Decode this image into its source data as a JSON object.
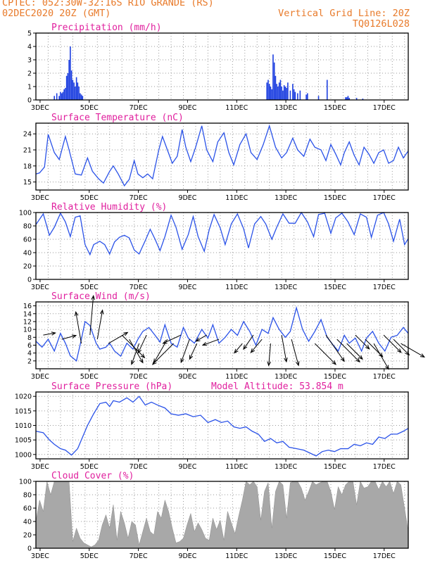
{
  "header": {
    "line1": "CPTEC:  052:30W-32:16S  RIO GRANDE (RS)",
    "line2": "02DEC2020 20Z (GMT)",
    "grid_note": "Vertical Grid Line: 20Z",
    "code": "TQ0126L028"
  },
  "x_ticks": [
    "3DEC",
    "5DEC",
    "7DEC",
    "9DEC",
    "11DEC",
    "13DEC",
    "15DEC",
    "17DEC"
  ],
  "chart_data": [
    {
      "type": "bar",
      "title": "Precipitation (mm/h)",
      "ylim": [
        0,
        5
      ],
      "yticks": [
        "0",
        "1",
        "2",
        "3",
        "4",
        "5"
      ],
      "x_unit": "days from 02DEC2020 20Z",
      "x": [
        0.75,
        0.85,
        0.95,
        1.0,
        1.05,
        1.1,
        1.15,
        1.2,
        1.25,
        1.3,
        1.35,
        1.4,
        1.45,
        1.5,
        1.55,
        1.6,
        1.65,
        1.7,
        1.75,
        1.8,
        1.85,
        1.9,
        9.4,
        9.45,
        9.5,
        9.55,
        9.6,
        9.65,
        9.7,
        9.75,
        9.8,
        9.85,
        9.9,
        9.95,
        10.0,
        10.05,
        10.1,
        10.15,
        10.2,
        10.25,
        10.35,
        10.45,
        10.5,
        10.55,
        10.65,
        10.75,
        11.0,
        11.05,
        11.5,
        11.85,
        12.6,
        12.65,
        12.7,
        12.75,
        13.05,
        13.3
      ],
      "values": [
        0.3,
        0.5,
        0.3,
        0.6,
        0.5,
        0.6,
        0.8,
        0.9,
        1.8,
        2.0,
        3.0,
        4.0,
        2.2,
        1.5,
        1.3,
        1.0,
        1.7,
        1.3,
        1.0,
        0.5,
        0.4,
        0.3,
        1.3,
        1.5,
        1.2,
        1.0,
        0.8,
        3.4,
        2.8,
        1.8,
        1.2,
        1.0,
        1.3,
        1.5,
        1.0,
        0.7,
        1.1,
        1.0,
        0.9,
        1.3,
        0.7,
        1.2,
        0.8,
        0.6,
        0.5,
        0.7,
        0.4,
        0.5,
        0.3,
        1.5,
        0.2,
        0.2,
        0.3,
        0.15,
        0.15,
        0.1
      ]
    },
    {
      "type": "line",
      "title": "Surface Temperature (nC)",
      "ylim": [
        13.5,
        26.0
      ],
      "yticks": [
        "15",
        "18",
        "21",
        "24"
      ],
      "x_unit": "days from 02DEC2020 20Z",
      "x": [
        0,
        0.15,
        0.35,
        0.5,
        0.75,
        0.95,
        1.2,
        1.35,
        1.6,
        1.85,
        2.1,
        2.3,
        2.55,
        2.75,
        3.0,
        3.15,
        3.35,
        3.6,
        3.8,
        4.0,
        4.15,
        4.35,
        4.55,
        4.75,
        5.0,
        5.15,
        5.35,
        5.55,
        5.75,
        5.95,
        6.1,
        6.3,
        6.5,
        6.75,
        6.95,
        7.2,
        7.4,
        7.65,
        7.85,
        8.05,
        8.3,
        8.55,
        8.75,
        9.0,
        9.25,
        9.5,
        9.75,
        10.0,
        10.2,
        10.45,
        10.65,
        10.9,
        11.15,
        11.35,
        11.6,
        11.8,
        12.0,
        12.2,
        12.4,
        12.55,
        12.75,
        12.95,
        13.15,
        13.35,
        13.55,
        13.75,
        13.95,
        14.15,
        14.35,
        14.55,
        14.75,
        14.95,
        15.15
      ],
      "values": [
        16.5,
        16.7,
        17.8,
        23.9,
        20.5,
        19.2,
        23.5,
        21.0,
        16.5,
        16.3,
        19.5,
        17.0,
        15.6,
        14.8,
        17.0,
        18.0,
        16.5,
        14.3,
        15.5,
        19.0,
        16.5,
        15.8,
        16.5,
        15.6,
        21.0,
        23.5,
        21.0,
        18.5,
        19.8,
        24.8,
        21.5,
        18.8,
        21.5,
        25.5,
        21.0,
        18.8,
        22.5,
        24.2,
        20.5,
        18.2,
        22.0,
        24.0,
        20.5,
        19.2,
        22.0,
        25.5,
        21.5,
        19.5,
        20.5,
        23.2,
        21.0,
        19.8,
        23.0,
        21.5,
        21.0,
        19.0,
        22.0,
        20.2,
        18.2,
        20.5,
        22.5,
        20.0,
        18.2,
        21.5,
        20.2,
        18.5,
        20.5,
        21.0,
        18.5,
        19.0,
        21.5,
        19.5,
        20.8
      ]
    },
    {
      "type": "line",
      "title": "Relative Humidity (%)",
      "ylim": [
        0,
        100
      ],
      "yticks": [
        "0",
        "20",
        "40",
        "60",
        "80",
        "100"
      ],
      "x_unit": "days from 02DEC2020 20Z",
      "x": [
        0,
        0.3,
        0.55,
        0.75,
        1.0,
        1.2,
        1.4,
        1.6,
        1.8,
        2.0,
        2.2,
        2.35,
        2.6,
        2.8,
        3.0,
        3.2,
        3.4,
        3.6,
        3.8,
        4.0,
        4.2,
        4.45,
        4.65,
        4.85,
        5.05,
        5.25,
        5.5,
        5.7,
        5.95,
        6.2,
        6.4,
        6.6,
        6.85,
        7.05,
        7.25,
        7.5,
        7.7,
        7.95,
        8.2,
        8.45,
        8.65,
        8.9,
        9.15,
        9.35,
        9.6,
        9.8,
        10.05,
        10.3,
        10.55,
        10.8,
        11.05,
        11.3,
        11.5,
        11.75,
        12.0,
        12.2,
        12.45,
        12.7,
        12.95,
        13.2,
        13.45,
        13.65,
        13.9,
        14.15,
        14.35,
        14.55,
        14.8,
        15.0,
        15.15
      ],
      "values": [
        82,
        98,
        66,
        78,
        99,
        86,
        64,
        93,
        95,
        52,
        37,
        52,
        57,
        52,
        38,
        56,
        63,
        66,
        62,
        44,
        38,
        58,
        75,
        60,
        43,
        64,
        96,
        78,
        45,
        67,
        94,
        64,
        42,
        74,
        97,
        77,
        52,
        83,
        98,
        76,
        47,
        83,
        94,
        83,
        60,
        78,
        98,
        84,
        84,
        100,
        86,
        64,
        97,
        99,
        69,
        92,
        99,
        86,
        67,
        98,
        93,
        63,
        96,
        100,
        83,
        57,
        90,
        52,
        61
      ]
    },
    {
      "type": "line",
      "title": "Surface Wind (m/s)",
      "ylim": [
        0,
        17
      ],
      "yticks": [
        "2",
        "4",
        "6",
        "8",
        "10",
        "12",
        "14",
        "16"
      ],
      "x_unit": "days from 02DEC2020 20Z",
      "x": [
        0,
        0.25,
        0.5,
        0.75,
        1.0,
        1.2,
        1.4,
        1.65,
        1.85,
        2.0,
        2.2,
        2.45,
        2.6,
        2.85,
        3.0,
        3.2,
        3.45,
        3.7,
        3.95,
        4.15,
        4.35,
        4.6,
        4.85,
        5.05,
        5.25,
        5.5,
        5.75,
        6.0,
        6.2,
        6.45,
        6.75,
        7.0,
        7.2,
        7.45,
        7.7,
        7.95,
        8.2,
        8.45,
        8.7,
        8.95,
        9.2,
        9.45,
        9.65,
        9.9,
        10.15,
        10.35,
        10.6,
        10.85,
        11.1,
        11.35,
        11.6,
        11.85,
        12.1,
        12.3,
        12.55,
        12.75,
        13.0,
        13.25,
        13.45,
        13.7,
        13.95,
        14.2,
        14.45,
        14.7,
        14.95,
        15.15
      ],
      "values": [
        7,
        5.5,
        7.5,
        4.5,
        9,
        6.5,
        3.3,
        2,
        7.5,
        12,
        11,
        6.5,
        5,
        5.5,
        6.5,
        4.5,
        3.2,
        6.5,
        5,
        7.5,
        9.5,
        10.5,
        8.5,
        6.8,
        11.2,
        6.5,
        5.5,
        10.5,
        7.8,
        6.5,
        10,
        7.8,
        11.2,
        6.5,
        8,
        10,
        8.5,
        12,
        9.5,
        6,
        10,
        9,
        13,
        10,
        8,
        9.5,
        15.5,
        10,
        7,
        9.5,
        12.5,
        8,
        6,
        4.5,
        8.5,
        6.5,
        7.8,
        4.5,
        7.8,
        9.5,
        6.5,
        4.5,
        8,
        8.5,
        10.5,
        9
      ],
      "vector_x": [
        0.3,
        1.05,
        1.85,
        2.2,
        2.5,
        2.95,
        3.5,
        3.8,
        4.2,
        4.5,
        5.35,
        5.6,
        5.9,
        6.25,
        6.55,
        6.95,
        7.45,
        8.4,
        8.85,
        9.2,
        9.55,
        10.0,
        10.4,
        11.35,
        11.8,
        12.25,
        12.65,
        13.0,
        13.4,
        13.75,
        14.15,
        14.55,
        14.85
      ],
      "vector_speed": [
        2.5,
        3.0,
        6.5,
        8.0,
        6.0,
        4.5,
        6.5,
        5.5,
        4.5,
        4.0,
        5.5,
        6.0,
        4.0,
        5.0,
        3.5,
        2.5,
        3.5,
        2.5,
        3.5,
        3.5,
        4.5,
        5.5,
        5.5,
        6.0,
        6.5,
        6.5,
        4.5,
        4.0,
        5.0,
        6.0,
        5.0,
        4.5,
        5.5
      ],
      "vector_dir_deg": [
        80,
        75,
        350,
        5,
        10,
        60,
        135,
        150,
        200,
        205,
        210,
        225,
        245,
        200,
        205,
        240,
        250,
        220,
        215,
        220,
        185,
        170,
        165,
        135,
        145,
        135,
        135,
        135,
        135,
        150,
        135,
        135,
        120
      ]
    },
    {
      "type": "line",
      "title": "Surface Pressure (hPa)",
      "annotation": "Model Altitude: 53.854 m",
      "ylim": [
        998.5,
        1021.5
      ],
      "yticks": [
        "1000",
        "1005",
        "1010",
        "1015",
        "1020"
      ],
      "x_unit": "days from 02DEC2020 20Z",
      "x": [
        0,
        0.3,
        0.55,
        0.75,
        1.0,
        1.2,
        1.45,
        1.7,
        1.9,
        2.1,
        2.35,
        2.6,
        2.85,
        3.0,
        3.15,
        3.4,
        3.7,
        3.95,
        4.2,
        4.45,
        4.7,
        4.95,
        5.25,
        5.5,
        5.8,
        6.1,
        6.4,
        6.7,
        7.0,
        7.3,
        7.55,
        7.8,
        8.05,
        8.3,
        8.55,
        8.8,
        9.05,
        9.3,
        9.55,
        9.8,
        10.05,
        10.3,
        10.6,
        10.9,
        11.15,
        11.4,
        11.65,
        11.9,
        12.15,
        12.4,
        12.7,
        12.95,
        13.2,
        13.45,
        13.7,
        13.95,
        14.2,
        14.45,
        14.7,
        14.95,
        15.15
      ],
      "values": [
        1008,
        1007.5,
        1005,
        1003.5,
        1002,
        1001.5,
        999.8,
        1002,
        1006,
        1010,
        1014,
        1017.5,
        1018,
        1016.5,
        1018.5,
        1018,
        1019.5,
        1018,
        1020,
        1017,
        1018,
        1017,
        1016,
        1014,
        1013.5,
        1014,
        1013,
        1013.5,
        1011,
        1012,
        1011,
        1011.5,
        1009.5,
        1009,
        1009.5,
        1008,
        1007,
        1004.5,
        1005.5,
        1004,
        1004.5,
        1002.5,
        1002,
        1001.5,
        1000.5,
        999.5,
        1001,
        1001.5,
        1001,
        1002,
        1002,
        1003.5,
        1003,
        1004,
        1003.5,
        1006,
        1005.5,
        1007,
        1007,
        1008,
        1009
      ]
    },
    {
      "type": "area",
      "title": "Cloud Cover (%)",
      "ylim": [
        0,
        100
      ],
      "yticks": [
        "0",
        "20",
        "40",
        "60",
        "80",
        "100"
      ],
      "x_unit": "days from 02DEC2020 20Z",
      "x": [
        0,
        0.15,
        0.3,
        0.45,
        0.6,
        0.75,
        0.9,
        1.05,
        1.2,
        1.35,
        1.5,
        1.65,
        1.8,
        1.95,
        2.1,
        2.25,
        2.4,
        2.55,
        2.7,
        2.85,
        3.0,
        3.15,
        3.3,
        3.45,
        3.6,
        3.75,
        3.9,
        4.05,
        4.2,
        4.35,
        4.5,
        4.65,
        4.8,
        4.95,
        5.1,
        5.25,
        5.4,
        5.55,
        5.7,
        5.85,
        6.0,
        6.15,
        6.3,
        6.45,
        6.6,
        6.75,
        6.9,
        7.05,
        7.2,
        7.35,
        7.5,
        7.65,
        7.8,
        7.95,
        8.1,
        8.25,
        8.4,
        8.55,
        8.7,
        8.85,
        9.0,
        9.15,
        9.3,
        9.45,
        9.6,
        9.75,
        9.9,
        10.05,
        10.2,
        10.35,
        10.5,
        10.65,
        10.8,
        10.95,
        11.1,
        11.25,
        11.4,
        11.55,
        11.7,
        11.85,
        12.0,
        12.15,
        12.3,
        12.45,
        12.6,
        12.75,
        12.9,
        13.05,
        13.2,
        13.35,
        13.5,
        13.65,
        13.8,
        13.95,
        14.1,
        14.25,
        14.4,
        14.55,
        14.7,
        14.85,
        15.0,
        15.15
      ],
      "values": [
        40,
        72,
        55,
        100,
        80,
        100,
        100,
        100,
        100,
        100,
        10,
        30,
        15,
        8,
        5,
        2,
        5,
        12,
        35,
        50,
        30,
        65,
        12,
        55,
        38,
        15,
        40,
        35,
        5,
        25,
        45,
        25,
        20,
        55,
        45,
        72,
        55,
        30,
        8,
        10,
        15,
        35,
        52,
        25,
        38,
        28,
        15,
        12,
        45,
        28,
        42,
        12,
        55,
        38,
        22,
        48,
        72,
        100,
        95,
        100,
        92,
        42,
        85,
        98,
        30,
        85,
        100,
        95,
        45,
        98,
        100,
        100,
        90,
        72,
        85,
        100,
        95,
        98,
        100,
        100,
        85,
        58,
        92,
        80,
        95,
        100,
        100,
        65,
        100,
        90,
        92,
        100,
        100,
        88,
        100,
        92,
        100,
        82,
        100,
        95,
        60,
        25
      ]
    }
  ]
}
